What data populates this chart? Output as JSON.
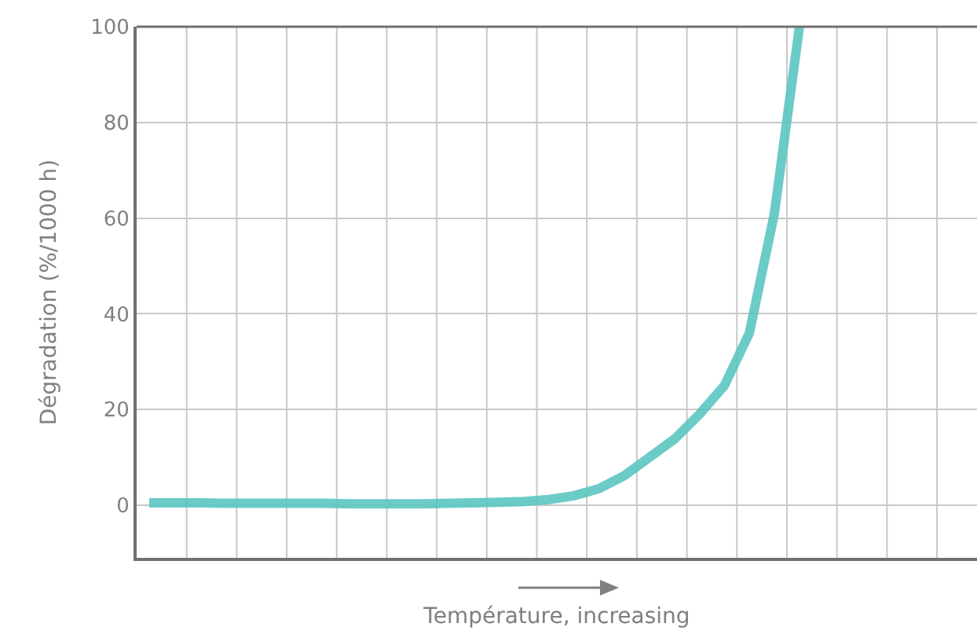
{
  "chart_data": {
    "type": "line",
    "xlabel": "Température, increasing",
    "ylabel": "Dégradation (%/1000 h)",
    "categories": [
      null,
      null,
      null,
      null,
      null,
      null,
      null,
      null,
      null,
      null,
      null,
      null,
      null,
      null,
      null,
      null,
      null,
      null,
      null,
      null,
      null,
      null,
      null,
      null,
      null,
      null,
      null
    ],
    "series": [
      {
        "color": "#5cc6c1",
        "values": [
          0.5,
          0.5,
          0.5,
          0.4,
          0.4,
          0.4,
          0.4,
          0.4,
          0.3,
          0.3,
          0.3,
          0.3,
          0.4,
          0.5,
          0.6,
          0.8,
          1.2,
          2,
          3.5,
          6.2,
          10,
          13.8,
          19,
          25,
          36,
          61,
          100
        ]
      }
    ],
    "ylim": [
      -11,
      100
    ],
    "yticks": [
      0,
      20,
      40,
      60,
      80,
      100
    ],
    "grid": true,
    "marker": "none",
    "line_style": "solid"
  }
}
